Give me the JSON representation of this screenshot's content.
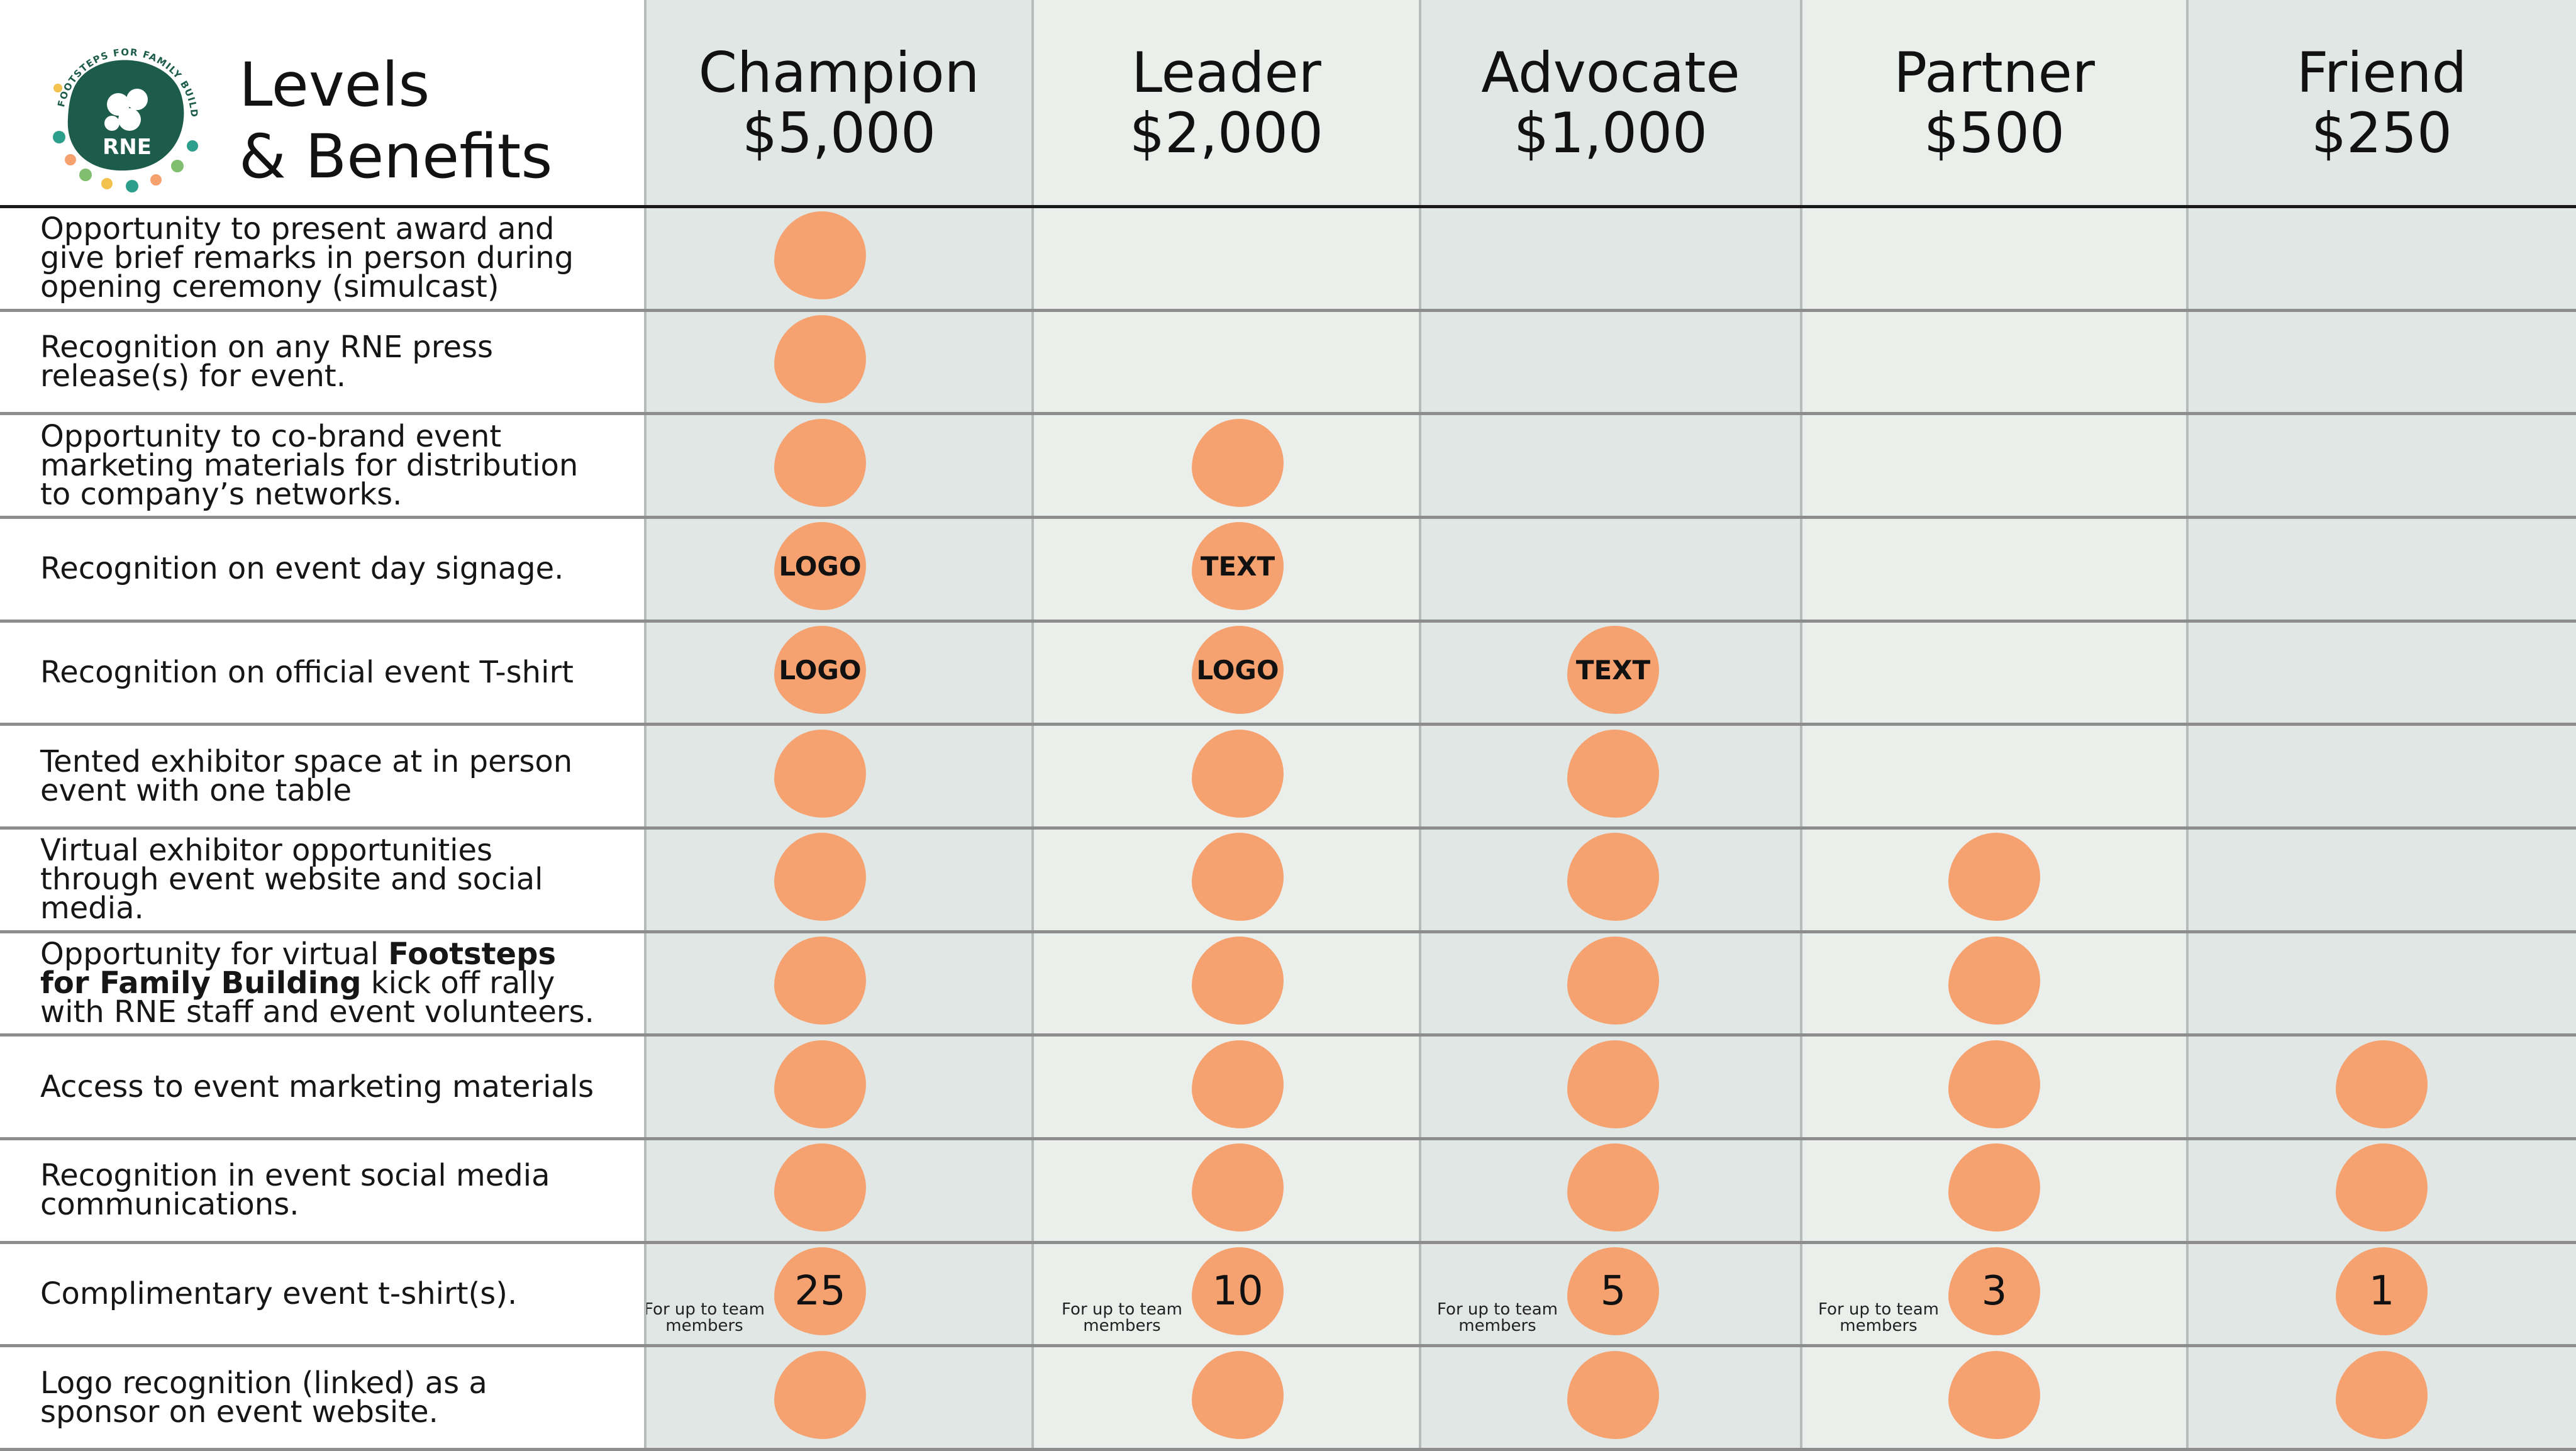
{
  "title": {
    "line1": "Levels",
    "line2": "& Benefits"
  },
  "logo": {
    "ring_text": "FOOTSTEPS FOR FAMILY BUILDING",
    "mark": "RNE"
  },
  "colors": {
    "accent_blob": "#f5a270",
    "brand_green": "#1d5c4a",
    "column_dark": "#e1e7e5",
    "column_light": "#ebefeb",
    "label_background": "#ffffff"
  },
  "levels": [
    {
      "name": "Champion",
      "amount": "$5,000"
    },
    {
      "name": "Leader",
      "amount": "$2,000"
    },
    {
      "name": "Advocate",
      "amount": "$1,000"
    },
    {
      "name": "Partner",
      "amount": "$500"
    },
    {
      "name": "Friend",
      "amount": "$250"
    }
  ],
  "benefits": [
    {
      "label": "Opportunity to present award and give brief remarks in person during opening ceremony (simulcast)",
      "cells": [
        "",
        null,
        null,
        null,
        null
      ]
    },
    {
      "label": "Recognition on any RNE press release(s) for event.",
      "cells": [
        "",
        null,
        null,
        null,
        null
      ]
    },
    {
      "label": "Opportunity to co-brand event marketing materials for distribution to company’s networks.",
      "cells": [
        "",
        "",
        null,
        null,
        null
      ]
    },
    {
      "label": "Recognition on event day signage.",
      "cells": [
        "LOGO",
        "TEXT",
        null,
        null,
        null
      ]
    },
    {
      "label": "Recognition on official event T-shirt",
      "cells": [
        "LOGO",
        "LOGO",
        "TEXT",
        null,
        null
      ]
    },
    {
      "label": "Tented exhibitor space at in person event with one table",
      "cells": [
        "",
        "",
        "",
        null,
        null
      ]
    },
    {
      "label": "Virtual exhibitor opportunities through event website and social media.",
      "cells": [
        "",
        "",
        "",
        "",
        null
      ]
    },
    {
      "label_before": "Opportunity for virtual ",
      "label_bold": "Footsteps for Family Building",
      "label_after": " kick off rally with RNE staff and event volunteers.",
      "cells": [
        "",
        "",
        "",
        "",
        null
      ]
    },
    {
      "label": "Access to event marketing materials",
      "cells": [
        "",
        "",
        "",
        "",
        ""
      ]
    },
    {
      "label": "Recognition in event social media communications.",
      "cells": [
        "",
        "",
        "",
        "",
        ""
      ]
    },
    {
      "label": "Complimentary event t-shirt(s).",
      "cells": [
        "25",
        "10",
        "5",
        "3",
        "1"
      ],
      "note": "For up to team members"
    },
    {
      "label": "Logo recognition (linked) as a sponsor on event website.",
      "cells": [
        "",
        "",
        "",
        "",
        ""
      ]
    }
  ]
}
